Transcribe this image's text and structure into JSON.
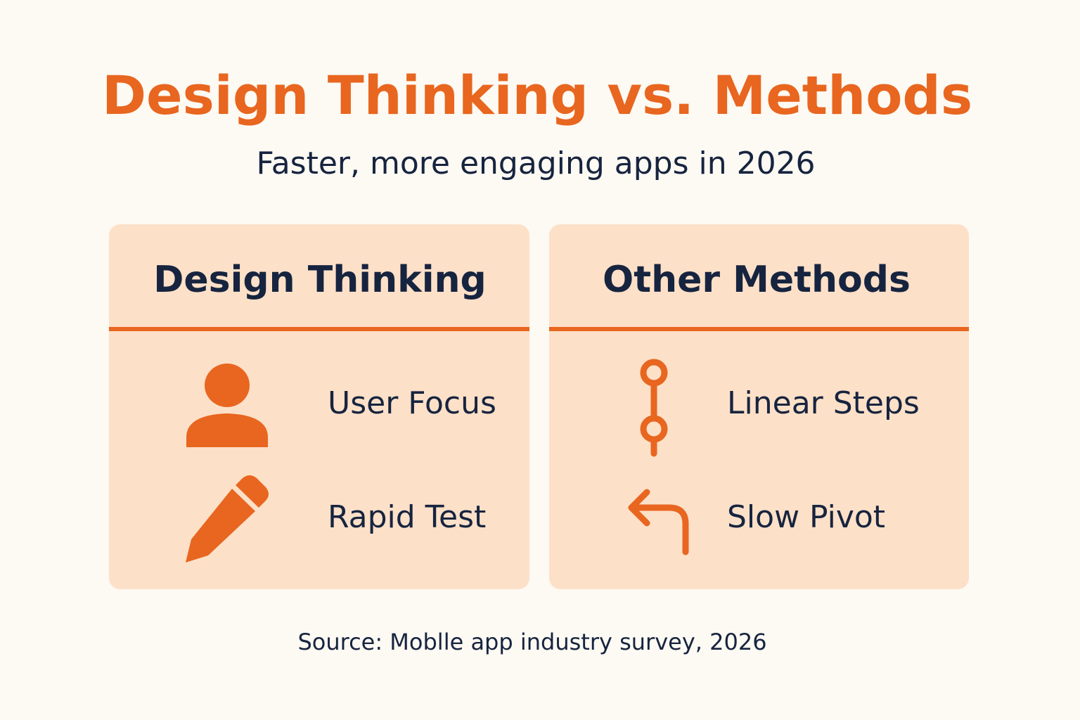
{
  "header": {
    "title": "Design Thinking vs. Methods",
    "subtitle": "Faster, more engaging apps in 2026"
  },
  "panels": [
    {
      "title": "Design Thinking",
      "items": [
        {
          "label": "User Focus"
        },
        {
          "label": "Rapid Test"
        }
      ]
    },
    {
      "title": "Other Methods",
      "items": [
        {
          "label": "Linear Steps"
        },
        {
          "label": "Slow Pivot"
        }
      ]
    }
  ],
  "footer": {
    "source": "Source: Moblle app industry survey, 2026"
  }
}
